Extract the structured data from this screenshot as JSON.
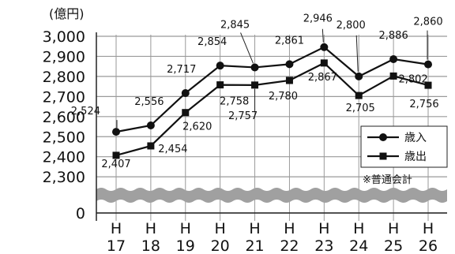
{
  "chart_data": {
    "type": "line",
    "unit_label": "(億円)",
    "categories": [
      {
        "era": "H",
        "year": "17"
      },
      {
        "era": "H",
        "year": "18"
      },
      {
        "era": "H",
        "year": "19"
      },
      {
        "era": "H",
        "year": "20"
      },
      {
        "era": "H",
        "year": "21"
      },
      {
        "era": "H",
        "year": "22"
      },
      {
        "era": "H",
        "year": "23"
      },
      {
        "era": "H",
        "year": "24"
      },
      {
        "era": "H",
        "year": "25"
      },
      {
        "era": "H",
        "year": "26"
      }
    ],
    "y_ticks": [
      {
        "value": 3000,
        "label": "3,000"
      },
      {
        "value": 2900,
        "label": "2,900"
      },
      {
        "value": 2800,
        "label": "2,800"
      },
      {
        "value": 2700,
        "label": "2,700"
      },
      {
        "value": 2600,
        "label": "2,600"
      },
      {
        "value": 2500,
        "label": "2,500"
      },
      {
        "value": 2400,
        "label": "2,400"
      },
      {
        "value": 2300,
        "label": "2,300"
      },
      {
        "value": 0,
        "label": "0"
      }
    ],
    "ylim": [
      2300,
      3000
    ],
    "axis_break": true,
    "grid": true,
    "series": [
      {
        "name": "歳入",
        "marker": "circle",
        "values": [
          2524,
          2556,
          2717,
          2854,
          2845,
          2861,
          2946,
          2800,
          2886,
          2860
        ],
        "labels": [
          "2,524",
          "2,556",
          "2,717",
          "2,854",
          "2,845",
          "2,861",
          "2,946",
          "2,800",
          "2,886",
          "2,860"
        ]
      },
      {
        "name": "歳出",
        "marker": "square",
        "values": [
          2407,
          2454,
          2620,
          2758,
          2757,
          2780,
          2867,
          2705,
          2802,
          2756
        ],
        "labels": [
          "2,407",
          "2,454",
          "2,620",
          "2,758",
          "2,757",
          "2,780",
          "2,867",
          "2,705",
          "2,802",
          "2,756"
        ]
      }
    ],
    "legend_position": "bottom-right",
    "note": "※普通会計"
  }
}
